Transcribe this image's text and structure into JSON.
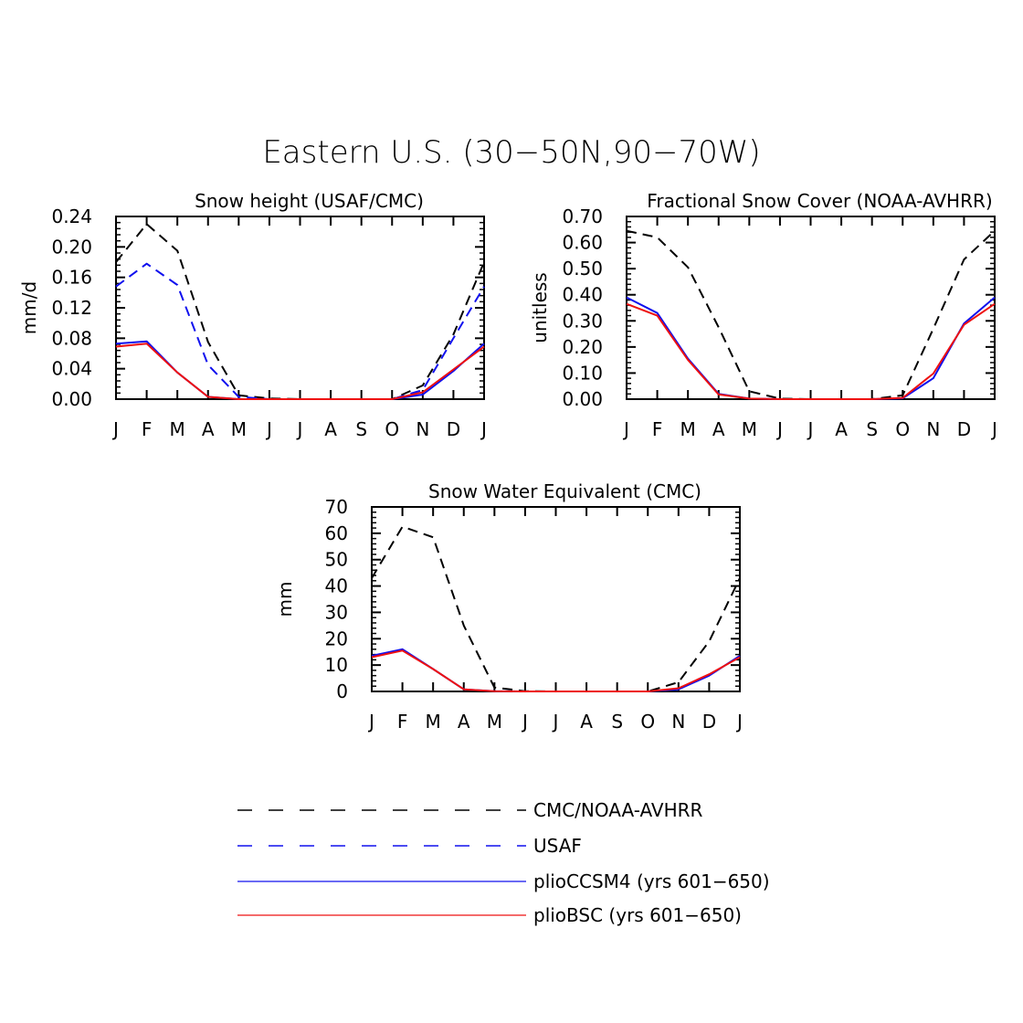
{
  "title": "Eastern U.S. (30−50N,90−70W)",
  "colors": {
    "black": "#000000",
    "blue": "#1010ee",
    "red": "#ee1010"
  },
  "legend": {
    "items": [
      {
        "label": "CMC/NOAA-AVHRR",
        "color": "#000000",
        "dash": true
      },
      {
        "label": "USAF",
        "color": "#1010ee",
        "dash": true
      },
      {
        "label": "plioCCSM4 (yrs 601−650)",
        "color": "#1010ee",
        "dash": false
      },
      {
        "label": "plioBSC (yrs 601−650)",
        "color": "#ee1010",
        "dash": false
      }
    ]
  },
  "chart_data": [
    {
      "type": "line",
      "title": "Snow height (USAF/CMC)",
      "ylabel": "mm/d",
      "xlabel": "",
      "categories": [
        "J",
        "F",
        "M",
        "A",
        "M",
        "J",
        "J",
        "A",
        "S",
        "O",
        "N",
        "D",
        "J"
      ],
      "ylim": [
        0,
        0.24
      ],
      "yticks": [
        "0.00",
        "0.04",
        "0.08",
        "0.12",
        "0.16",
        "0.20",
        "0.24"
      ],
      "grid": false,
      "series": [
        {
          "name": "CMC/NOAA-AVHRR",
          "color": "#000000",
          "dash": true,
          "values": [
            0.18,
            0.23,
            0.195,
            0.075,
            0.005,
            0.001,
            0.0,
            0.0,
            0.0,
            0.0,
            0.018,
            0.085,
            0.18
          ]
        },
        {
          "name": "USAF",
          "color": "#1010ee",
          "dash": true,
          "values": [
            0.148,
            0.178,
            0.15,
            0.045,
            0.003,
            0.0,
            0.0,
            0.0,
            0.0,
            0.0,
            0.012,
            0.08,
            0.148
          ]
        },
        {
          "name": "plioCCSM4 (yrs 601−650)",
          "color": "#1010ee",
          "dash": false,
          "values": [
            0.073,
            0.076,
            0.035,
            0.003,
            0.0,
            0.0,
            0.0,
            0.0,
            0.0,
            0.0,
            0.006,
            0.037,
            0.073
          ]
        },
        {
          "name": "plioBSC (yrs 601−650)",
          "color": "#ee1010",
          "dash": false,
          "values": [
            0.069,
            0.073,
            0.035,
            0.003,
            0.0,
            0.0,
            0.0,
            0.0,
            0.0,
            0.0,
            0.009,
            0.039,
            0.069
          ]
        }
      ]
    },
    {
      "type": "line",
      "title": "Fractional Snow Cover (NOAA-AVHRR)",
      "ylabel": "unitless",
      "xlabel": "",
      "categories": [
        "J",
        "F",
        "M",
        "A",
        "M",
        "J",
        "J",
        "A",
        "S",
        "O",
        "N",
        "D",
        "J"
      ],
      "ylim": [
        0,
        0.7
      ],
      "yticks": [
        "0.00",
        "0.10",
        "0.20",
        "0.30",
        "0.40",
        "0.50",
        "0.60",
        "0.70"
      ],
      "grid": false,
      "series": [
        {
          "name": "CMC/NOAA-AVHRR",
          "color": "#000000",
          "dash": true,
          "values": [
            0.645,
            0.62,
            0.505,
            0.275,
            0.03,
            0.002,
            0.0,
            0.0,
            0.0,
            0.015,
            0.27,
            0.535,
            0.645
          ]
        },
        {
          "name": "plioCCSM4 (yrs 601−650)",
          "color": "#1010ee",
          "dash": false,
          "values": [
            0.39,
            0.33,
            0.155,
            0.02,
            0.002,
            0.0,
            0.0,
            0.0,
            0.0,
            0.003,
            0.08,
            0.29,
            0.39
          ]
        },
        {
          "name": "plioBSC (yrs 601−650)",
          "color": "#ee1010",
          "dash": false,
          "values": [
            0.365,
            0.32,
            0.15,
            0.018,
            0.002,
            0.0,
            0.0,
            0.0,
            0.0,
            0.005,
            0.098,
            0.285,
            0.365
          ]
        }
      ]
    },
    {
      "type": "line",
      "title": "Snow Water Equivalent (CMC)",
      "ylabel": "mm",
      "xlabel": "",
      "categories": [
        "J",
        "F",
        "M",
        "A",
        "M",
        "J",
        "J",
        "A",
        "S",
        "O",
        "N",
        "D",
        "J"
      ],
      "ylim": [
        0,
        70
      ],
      "yticks": [
        "0",
        "10",
        "20",
        "30",
        "40",
        "50",
        "60",
        "70"
      ],
      "grid": false,
      "series": [
        {
          "name": "CMC/NOAA-AVHRR",
          "color": "#000000",
          "dash": true,
          "values": [
            43,
            62.5,
            58.5,
            25,
            1.5,
            0.1,
            0,
            0,
            0,
            0,
            3.5,
            19,
            43
          ]
        },
        {
          "name": "plioCCSM4 (yrs 601−650)",
          "color": "#1010ee",
          "dash": false,
          "values": [
            13.5,
            16,
            8.5,
            0.8,
            0.1,
            0,
            0,
            0,
            0,
            0,
            0.8,
            6,
            13.5
          ]
        },
        {
          "name": "plioBSC (yrs 601−650)",
          "color": "#ee1010",
          "dash": false,
          "values": [
            13,
            15.5,
            8.5,
            0.8,
            0.1,
            0,
            0,
            0,
            0,
            0,
            1.2,
            6.5,
            13
          ]
        }
      ]
    }
  ]
}
